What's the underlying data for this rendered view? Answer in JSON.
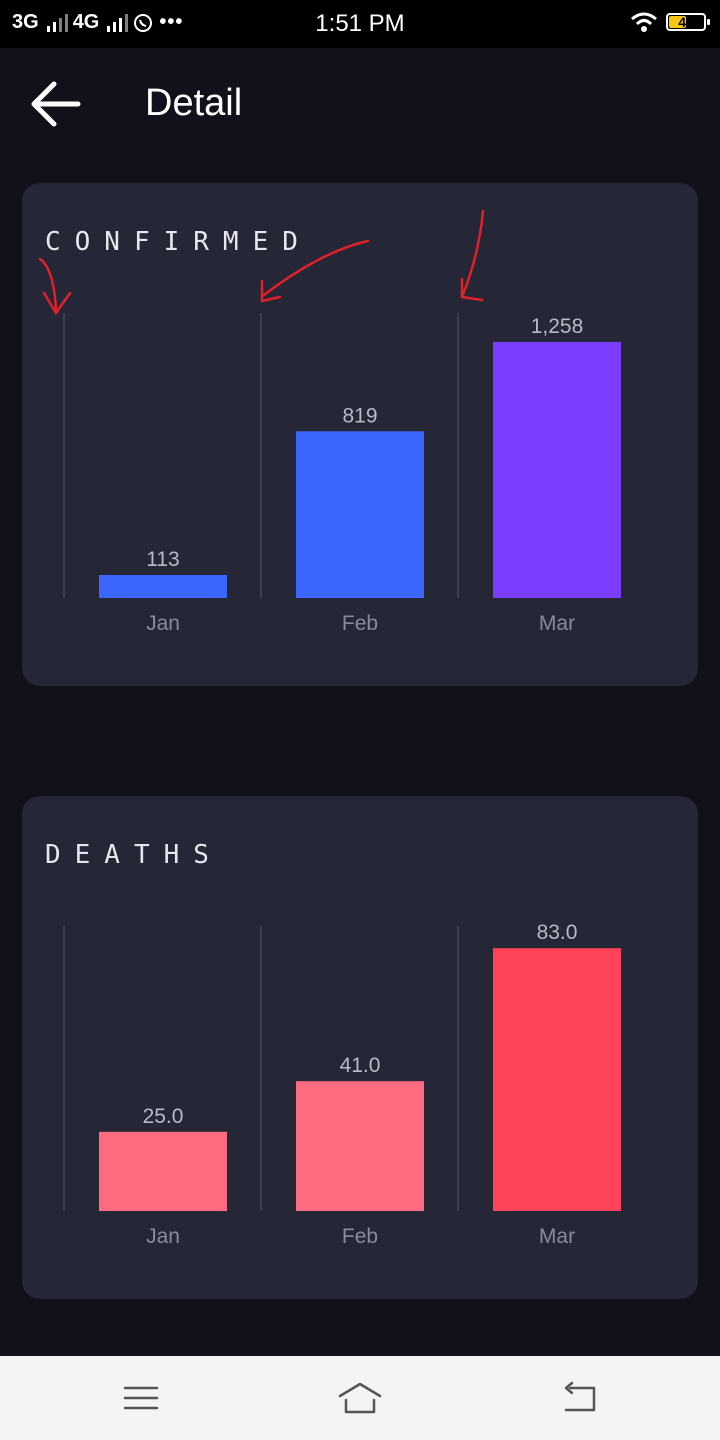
{
  "status_bar": {
    "net1": "3G",
    "net2": "4G",
    "time": "1:51 PM",
    "battery": "47"
  },
  "header": {
    "title": "Detail",
    "back_icon": "arrow-left-icon"
  },
  "confirmed": {
    "title": "CONFIRMED"
  },
  "deaths": {
    "title": "DEATHS"
  },
  "chart_data": [
    {
      "type": "bar",
      "title": "CONFIRMED",
      "categories": [
        "Jan",
        "Feb",
        "Mar"
      ],
      "values": [
        113,
        819,
        1258
      ],
      "value_labels": [
        "113",
        "819",
        "1,258"
      ],
      "colors": [
        "#3d66ff",
        "#3d66ff",
        "#7b3dff"
      ],
      "ylim": [
        0,
        1400
      ],
      "grid": true
    },
    {
      "type": "bar",
      "title": "DEATHS",
      "categories": [
        "Jan",
        "Feb",
        "Mar"
      ],
      "values": [
        25.0,
        41.0,
        83.0
      ],
      "value_labels": [
        "25.0",
        "41.0",
        "83.0"
      ],
      "colors": [
        "#ff6b81",
        "#ff6b81",
        "#ff4459"
      ],
      "ylim": [
        0,
        90
      ],
      "grid": true
    }
  ],
  "nav_bar": {
    "menu_icon": "menu-icon",
    "home_icon": "home-icon",
    "back_icon": "back-icon"
  }
}
